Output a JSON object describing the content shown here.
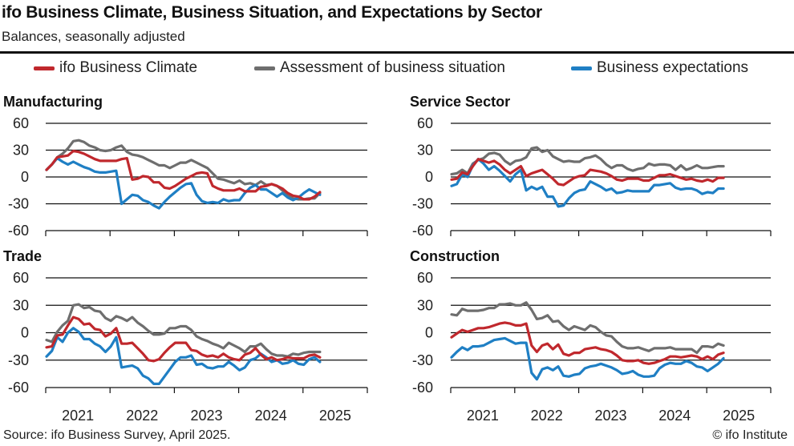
{
  "header": {
    "title": "ifo Business Climate, Business Situation, and Expectations by Sector",
    "subtitle": "Balances, seasonally adjusted"
  },
  "legend": [
    {
      "label": "ifo Business Climate",
      "color": "#c0282d"
    },
    {
      "label": "Assessment of business situation",
      "color": "#6e6e6e"
    },
    {
      "label": "Business expectations",
      "color": "#1f7fc4"
    }
  ],
  "footer": {
    "source": "Source: ifo Business Survey, April 2025.",
    "copyright": "© ifo Institute"
  },
  "chart_data": [
    {
      "type": "line",
      "title": "Manufacturing",
      "x_start": "2021-01",
      "x_end": "2025-04",
      "frequency": "monthly",
      "xtick_labels": [
        "2021",
        "2022",
        "2023",
        "2024",
        "2025"
      ],
      "yticks": [
        60,
        30,
        0,
        -30,
        -60
      ],
      "ylim": [
        -60,
        60
      ],
      "grid": true,
      "series": [
        {
          "name": "ifo Business Climate",
          "values": [
            8,
            14,
            22,
            23,
            24,
            29,
            28,
            26,
            23,
            20,
            18,
            18,
            18,
            18,
            20,
            21,
            -3,
            -2,
            1,
            0,
            -6,
            -6,
            -12,
            -13,
            -10,
            -6,
            -2,
            1,
            4,
            5,
            4,
            -10,
            -13,
            -15,
            -15,
            -15,
            -13,
            -16,
            -16,
            -16,
            -11,
            -10,
            -8,
            -10,
            -13,
            -18,
            -21,
            -22,
            -25,
            -25,
            -22,
            -17
          ]
        },
        {
          "name": "Assessment of business situation",
          "values": [
            8,
            14,
            22,
            26,
            32,
            40,
            41,
            39,
            35,
            33,
            30,
            29,
            30,
            33,
            35,
            28,
            25,
            24,
            22,
            19,
            16,
            13,
            13,
            10,
            13,
            16,
            16,
            19,
            16,
            13,
            10,
            4,
            -2,
            -3,
            -5,
            -7,
            -4,
            -8,
            -7,
            -9,
            -5,
            -9,
            -8,
            -10,
            -15,
            -20,
            -24,
            -25,
            -25,
            -24,
            -24,
            -18
          ]
        },
        {
          "name": "Business expectations",
          "values": [
            8,
            14,
            21,
            17,
            14,
            17,
            14,
            11,
            9,
            6,
            5,
            5,
            6,
            7,
            -30,
            -25,
            -20,
            -21,
            -26,
            -28,
            -32,
            -35,
            -28,
            -22,
            -17,
            -12,
            -8,
            -7,
            -20,
            -27,
            -29,
            -28,
            -29,
            -25,
            -27,
            -26,
            -26,
            -18,
            -12,
            -9,
            -14,
            -14,
            -18,
            -22,
            -18,
            -23,
            -26,
            -23,
            -18,
            -14,
            -17,
            -20
          ]
        }
      ]
    },
    {
      "type": "line",
      "title": "Service Sector",
      "x_start": "2021-01",
      "x_end": "2025-04",
      "frequency": "monthly",
      "xtick_labels": [
        "2021",
        "2022",
        "2023",
        "2024",
        "2025"
      ],
      "yticks": [
        60,
        30,
        0,
        -30,
        -60
      ],
      "ylim": [
        -60,
        60
      ],
      "grid": true,
      "series": [
        {
          "name": "ifo Business Climate",
          "values": [
            -3,
            -2,
            5,
            3,
            12,
            20,
            18,
            16,
            18,
            14,
            8,
            4,
            8,
            12,
            1,
            4,
            6,
            8,
            3,
            -2,
            -8,
            -9,
            -5,
            -1,
            1,
            2,
            8,
            7,
            6,
            4,
            1,
            -3,
            -4,
            -2,
            -2,
            -2,
            -4,
            -4,
            -1,
            2,
            2,
            3,
            1,
            -1,
            -3,
            -2,
            -4,
            -5,
            -3,
            -5,
            -1,
            -1
          ]
        },
        {
          "name": "Assessment of business situation",
          "values": [
            3,
            4,
            8,
            4,
            15,
            19,
            21,
            26,
            27,
            25,
            18,
            14,
            18,
            19,
            22,
            32,
            33,
            28,
            30,
            23,
            20,
            17,
            18,
            17,
            17,
            21,
            22,
            24,
            20,
            14,
            10,
            13,
            13,
            9,
            7,
            9,
            10,
            15,
            13,
            14,
            14,
            13,
            8,
            13,
            8,
            10,
            13,
            10,
            10,
            11,
            12,
            12
          ]
        },
        {
          "name": "Business expectations",
          "values": [
            -10,
            -8,
            3,
            0,
            13,
            20,
            15,
            8,
            12,
            7,
            1,
            -5,
            3,
            8,
            -15,
            -11,
            -14,
            -11,
            -22,
            -22,
            -33,
            -32,
            -24,
            -18,
            -15,
            -14,
            -5,
            -8,
            -11,
            -15,
            -13,
            -18,
            -17,
            -15,
            -16,
            -16,
            -16,
            -16,
            -9,
            -9,
            -8,
            -7,
            -12,
            -14,
            -13,
            -13,
            -15,
            -19,
            -17,
            -18,
            -13,
            -13
          ]
        }
      ]
    },
    {
      "type": "line",
      "title": "Trade",
      "x_start": "2021-01",
      "x_end": "2025-04",
      "frequency": "monthly",
      "xtick_labels": [
        "2021",
        "2022",
        "2023",
        "2024",
        "2025"
      ],
      "yticks": [
        60,
        30,
        0,
        -30,
        -60
      ],
      "ylim": [
        -60,
        60
      ],
      "grid": true,
      "series": [
        {
          "name": "ifo Business Climate",
          "values": [
            -16,
            -15,
            -3,
            -2,
            8,
            17,
            15,
            9,
            10,
            4,
            3,
            -4,
            -1,
            5,
            -12,
            -12,
            -11,
            -17,
            -23,
            -30,
            -31,
            -29,
            -22,
            -16,
            -11,
            -11,
            -11,
            -19,
            -20,
            -24,
            -26,
            -25,
            -27,
            -23,
            -27,
            -29,
            -30,
            -24,
            -22,
            -17,
            -24,
            -29,
            -27,
            -30,
            -29,
            -27,
            -28,
            -28,
            -28,
            -25,
            -24,
            -27
          ]
        },
        {
          "name": "Assessment of business situation",
          "values": [
            -8,
            -10,
            1,
            8,
            13,
            30,
            31,
            27,
            28,
            24,
            23,
            16,
            13,
            18,
            16,
            13,
            17,
            11,
            7,
            2,
            -2,
            -2,
            -1,
            5,
            5,
            7,
            7,
            3,
            -4,
            -7,
            -9,
            -12,
            -14,
            -17,
            -11,
            -14,
            -17,
            -21,
            -15,
            -15,
            -12,
            -18,
            -23,
            -25,
            -25,
            -26,
            -23,
            -24,
            -22,
            -21,
            -21,
            -21
          ]
        },
        {
          "name": "Business expectations",
          "values": [
            -26,
            -20,
            -5,
            -10,
            0,
            5,
            1,
            -7,
            -7,
            -12,
            -15,
            -21,
            -15,
            -5,
            -38,
            -37,
            -36,
            -39,
            -47,
            -50,
            -56,
            -56,
            -48,
            -40,
            -32,
            -27,
            -27,
            -25,
            -35,
            -34,
            -38,
            -39,
            -37,
            -37,
            -32,
            -36,
            -41,
            -38,
            -30,
            -28,
            -23,
            -27,
            -32,
            -30,
            -34,
            -33,
            -30,
            -34,
            -35,
            -29,
            -27,
            -32
          ]
        }
      ]
    },
    {
      "type": "line",
      "title": "Construction",
      "x_start": "2021-01",
      "x_end": "2025-04",
      "frequency": "monthly",
      "xtick_labels": [
        "2021",
        "2022",
        "2023",
        "2024",
        "2025"
      ],
      "yticks": [
        60,
        30,
        0,
        -30,
        -60
      ],
      "ylim": [
        -60,
        60
      ],
      "grid": true,
      "series": [
        {
          "name": "ifo Business Climate",
          "values": [
            -5,
            -1,
            3,
            1,
            3,
            5,
            5,
            6,
            8,
            10,
            11,
            10,
            8,
            8,
            10,
            -14,
            -21,
            -14,
            -12,
            -18,
            -13,
            -23,
            -25,
            -22,
            -22,
            -18,
            -17,
            -16,
            -18,
            -19,
            -21,
            -25,
            -30,
            -31,
            -31,
            -30,
            -33,
            -34,
            -33,
            -31,
            -29,
            -26,
            -26,
            -27,
            -26,
            -25,
            -26,
            -29,
            -26,
            -29,
            -24,
            -22
          ]
        },
        {
          "name": "Assessment of business situation",
          "values": [
            20,
            19,
            26,
            24,
            24,
            24,
            25,
            27,
            27,
            31,
            31,
            32,
            30,
            30,
            33,
            25,
            15,
            16,
            19,
            12,
            13,
            7,
            3,
            7,
            5,
            3,
            8,
            6,
            1,
            -3,
            -4,
            -10,
            -15,
            -17,
            -17,
            -16,
            -18,
            -20,
            -17,
            -17,
            -17,
            -16,
            -18,
            -18,
            -18,
            -18,
            -22,
            -15,
            -15,
            -16,
            -12,
            -14
          ]
        },
        {
          "name": "Business expectations",
          "values": [
            -27,
            -21,
            -16,
            -19,
            -15,
            -15,
            -14,
            -11,
            -8,
            -7,
            -6,
            -9,
            -12,
            -11,
            -11,
            -44,
            -51,
            -40,
            -38,
            -41,
            -37,
            -47,
            -48,
            -46,
            -45,
            -39,
            -37,
            -36,
            -34,
            -36,
            -38,
            -41,
            -45,
            -44,
            -42,
            -46,
            -48,
            -48,
            -47,
            -39,
            -35,
            -33,
            -34,
            -34,
            -31,
            -33,
            -37,
            -38,
            -42,
            -38,
            -34,
            -28
          ]
        }
      ]
    }
  ]
}
